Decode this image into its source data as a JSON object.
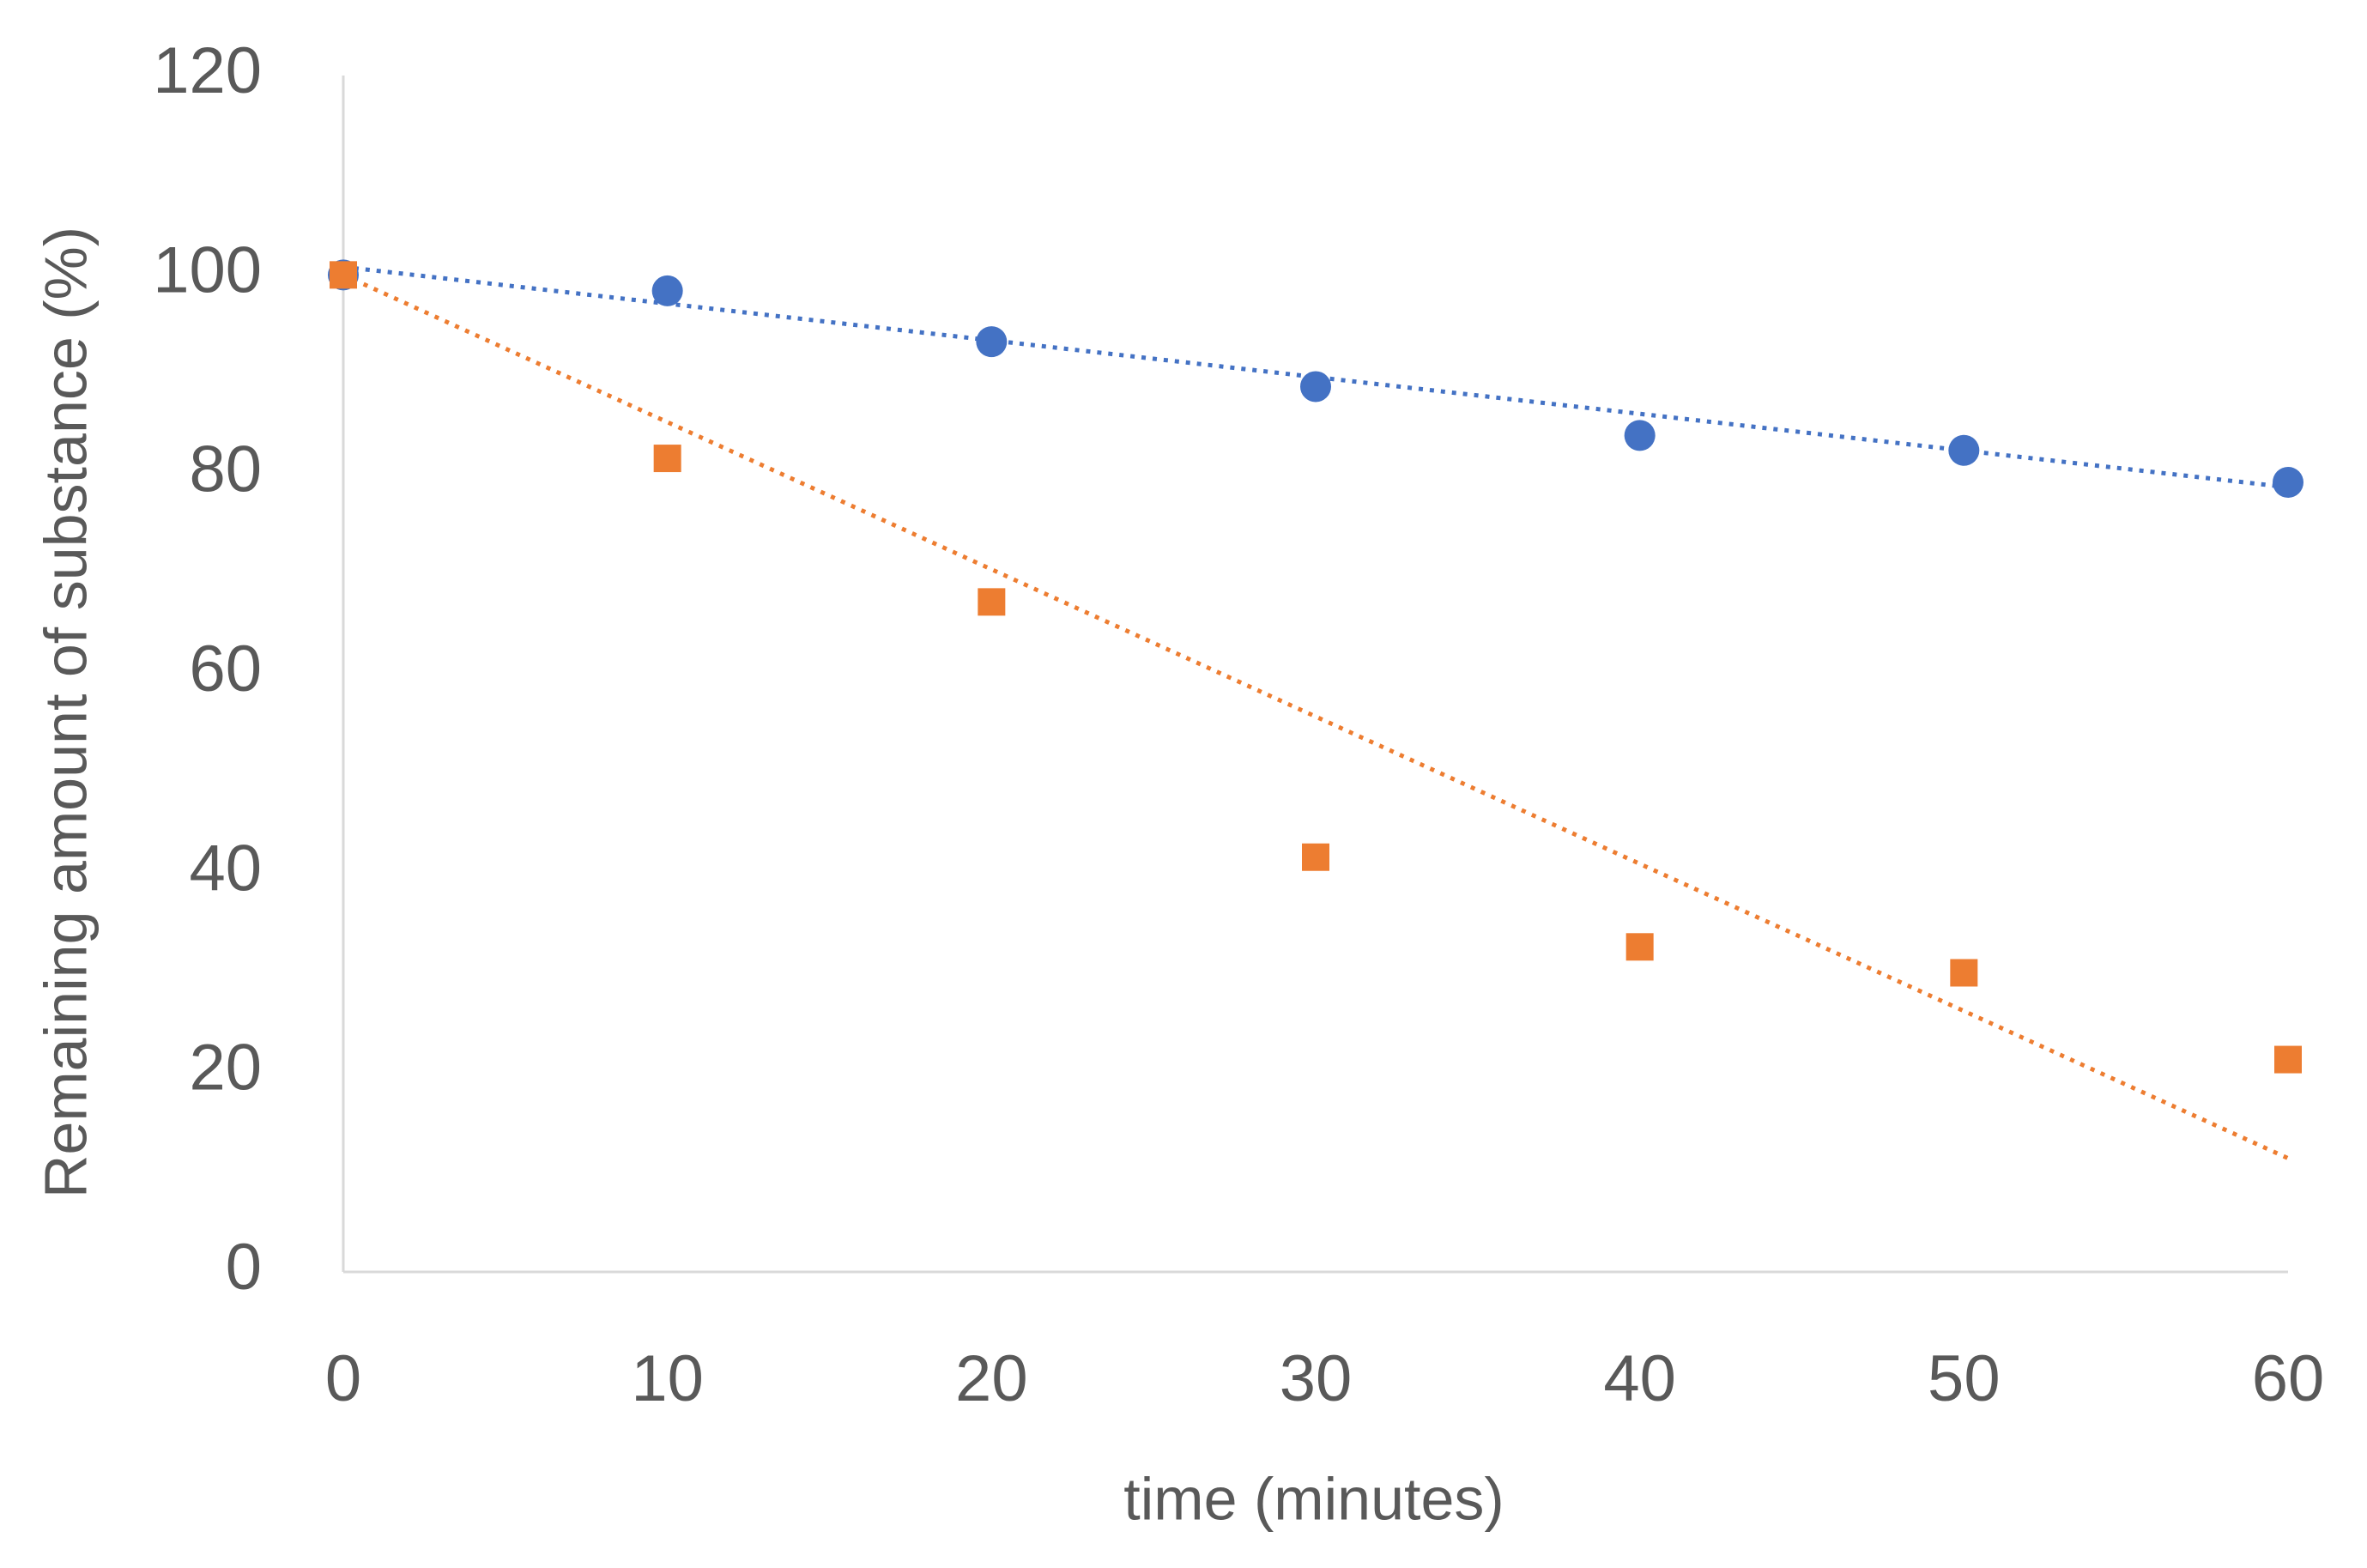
{
  "chart_data": {
    "type": "scatter",
    "x_label": "time (minutes)",
    "y_label": "Remaining amount of substance (%)",
    "xlim": [
      0,
      60
    ],
    "xticks": [
      0,
      10,
      20,
      30,
      40,
      50,
      60
    ],
    "ylim": [
      0,
      120
    ],
    "yticks": [
      0,
      20,
      40,
      60,
      80,
      100,
      120
    ],
    "grid": false,
    "series": [
      {
        "color": "#4472c4",
        "marker": "circle",
        "x": [
          0,
          10,
          20,
          30,
          40,
          50,
          60
        ],
        "values": [
          100,
          98.4,
          93.3,
          88.8,
          83.9,
          82.4,
          79.2
        ],
        "trendline": {
          "style": "dotted",
          "x": [
            0,
            60
          ],
          "values": [
            100.8,
            78.7
          ]
        }
      },
      {
        "color": "#ed7d31",
        "marker": "square",
        "x": [
          0,
          10,
          20,
          30,
          40,
          50,
          60
        ],
        "values": [
          100,
          81.6,
          67.2,
          41.6,
          32.6,
          30.0,
          21.3
        ],
        "trendline": {
          "style": "dotted",
          "x": [
            0,
            60
          ],
          "values": [
            100,
            11.4
          ]
        }
      }
    ]
  }
}
